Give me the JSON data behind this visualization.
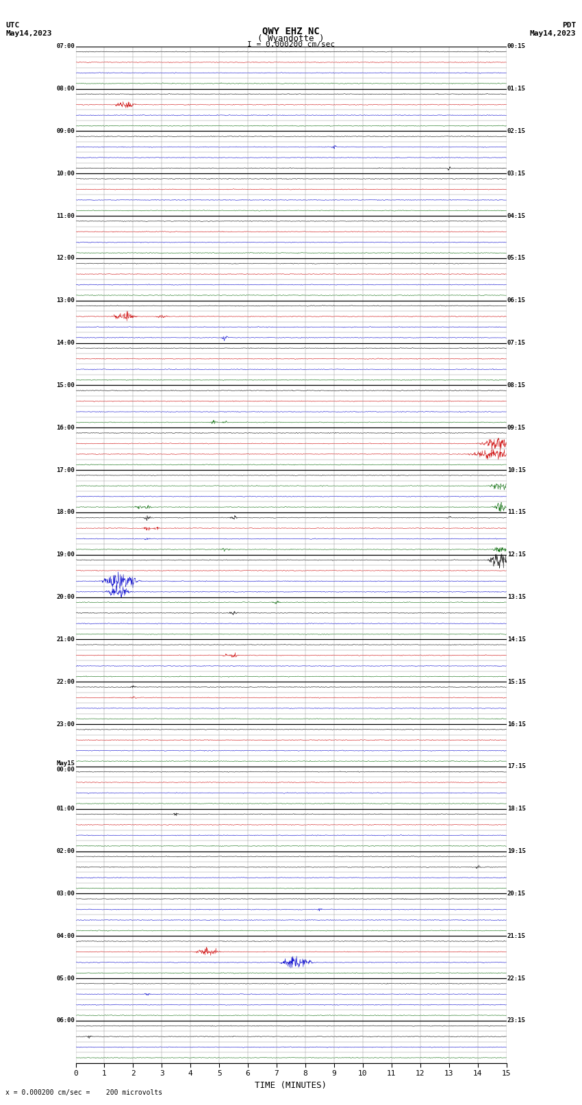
{
  "title_line1": "QWY EHZ NC",
  "title_line2": "( Wyandotte )",
  "scale_label": "I = 0.000200 cm/sec",
  "left_header_line1": "UTC",
  "left_header_line2": "May14,2023",
  "right_header_line1": "PDT",
  "right_header_line2": "May14,2023",
  "bottom_label": "TIME (MINUTES)",
  "footer_label": "= 0.000200 cm/sec =    200 microvolts",
  "xlim": [
    0,
    15
  ],
  "num_rows": 96,
  "utc_labels_hourly": [
    "07:00",
    "08:00",
    "09:00",
    "10:00",
    "11:00",
    "12:00",
    "13:00",
    "14:00",
    "15:00",
    "16:00",
    "17:00",
    "18:00",
    "19:00",
    "20:00",
    "21:00",
    "22:00",
    "23:00",
    "May15\n00:00",
    "01:00",
    "02:00",
    "03:00",
    "04:00",
    "05:00",
    "06:00"
  ],
  "pdt_labels_hourly": [
    "00:15",
    "01:15",
    "02:15",
    "03:15",
    "04:15",
    "05:15",
    "06:15",
    "07:15",
    "08:15",
    "09:15",
    "10:15",
    "11:15",
    "12:15",
    "13:15",
    "14:15",
    "15:15",
    "16:15",
    "17:15",
    "18:15",
    "19:15",
    "20:15",
    "21:15",
    "22:15",
    "23:15"
  ],
  "background_color": "#ffffff",
  "seed": 42
}
